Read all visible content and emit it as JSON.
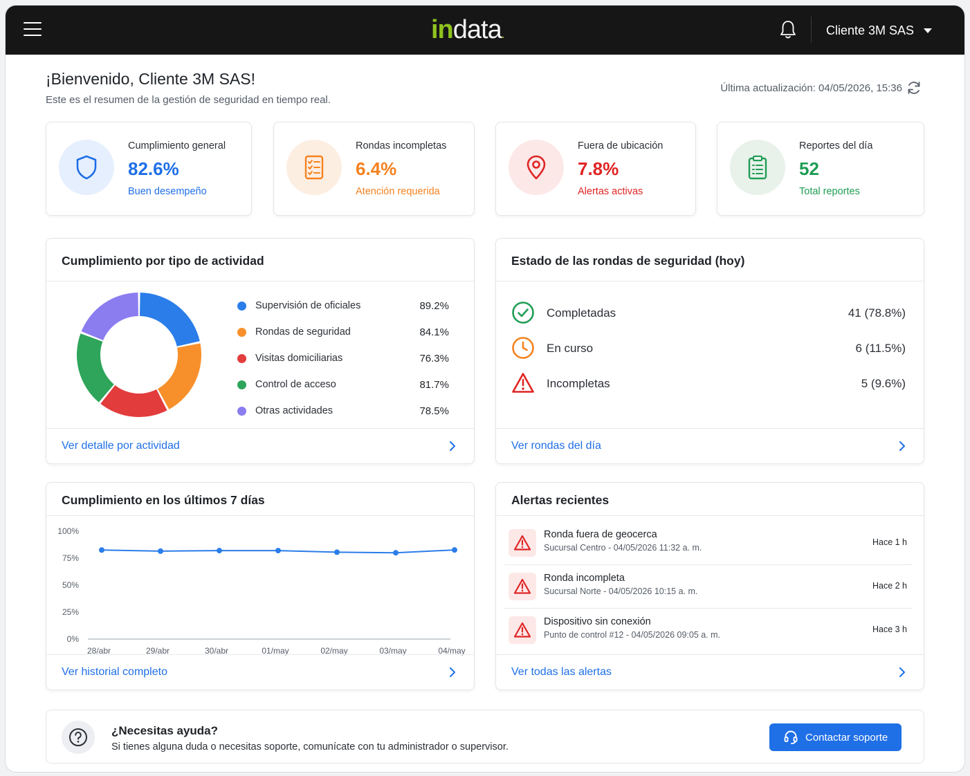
{
  "header": {
    "logo_in": "in",
    "logo_data": "data",
    "logo_dot": ".",
    "client_name": "Cliente 3M SAS"
  },
  "welcome": {
    "title": "¡Bienvenido, Cliente 3M SAS!",
    "subtitle": "Este es el resumen de la gestión de seguridad en tiempo real.",
    "last_update": "Última actualización: 04/05/2026, 15:36"
  },
  "kpis": [
    {
      "label": "Cumplimiento general",
      "value": "82.6%",
      "sub": "Buen desempeño",
      "color": "#1f6fe6",
      "bg": "#e6effd",
      "icon": "shield-icon"
    },
    {
      "label": "Rondas incompletas",
      "value": "6.4%",
      "sub": "Atención requerida",
      "color": "#f5821f",
      "bg": "#fdeee2",
      "icon": "checklist-icon"
    },
    {
      "label": "Fuera de ubicación",
      "value": "7.8%",
      "sub": "Alertas activas",
      "color": "#e02424",
      "bg": "#fde8e8",
      "icon": "location-pin-icon"
    },
    {
      "label": "Reportes del día",
      "value": "52",
      "sub": "Total reportes",
      "color": "#1f9d55",
      "bg": "#e8f1ea",
      "icon": "clipboard-icon"
    }
  ],
  "activity": {
    "title": "Cumplimiento por tipo de actividad",
    "link": "Ver detalle por actividad",
    "items": [
      {
        "name": "Supervisión de oficiales",
        "value": 89.2,
        "label": "89.2%",
        "color": "#2b7de9"
      },
      {
        "name": "Rondas de seguridad",
        "value": 84.1,
        "label": "84.1%",
        "color": "#f7902b"
      },
      {
        "name": "Visitas domiciliarias",
        "value": 76.3,
        "label": "76.3%",
        "color": "#e23c3c"
      },
      {
        "name": "Control de acceso",
        "value": 81.7,
        "label": "81.7%",
        "color": "#2ea55a"
      },
      {
        "name": "Otras actividades",
        "value": 78.5,
        "label": "78.5%",
        "color": "#8b7cf0"
      }
    ]
  },
  "rounds": {
    "title": "Estado de las rondas de seguridad (hoy)",
    "link": "Ver rondas del día",
    "items": [
      {
        "name": "Completadas",
        "count": "41 (78.8%)",
        "icon": "check-circle-icon",
        "color": "#1f9d55"
      },
      {
        "name": "En curso",
        "count": "6 (11.5%)",
        "icon": "clock-icon",
        "color": "#f5821f"
      },
      {
        "name": "Incompletas",
        "count": "5 (9.6%)",
        "icon": "warning-triangle-icon",
        "color": "#e02424"
      }
    ]
  },
  "chart_data": {
    "type": "line",
    "title": "Cumplimiento en los últimos 7 días",
    "categories": [
      "28/abr",
      "29/abr",
      "30/abr",
      "01/may",
      "02/may",
      "03/may",
      "04/may"
    ],
    "values": [
      82.5,
      81.5,
      82,
      82,
      80.5,
      80,
      82.6
    ],
    "y_ticks": [
      "100%",
      "75%",
      "50%",
      "25%",
      "0%"
    ],
    "ylim": [
      0,
      100
    ],
    "grid": false,
    "color": "#2b7de9"
  },
  "history": {
    "link": "Ver historial completo"
  },
  "alerts": {
    "title": "Alertas recientes",
    "link": "Ver todas las alertas",
    "items": [
      {
        "title": "Ronda fuera de geocerca",
        "desc": "Sucursal Centro - 04/05/2026 11:32 a. m.",
        "time": "Hace 1 h"
      },
      {
        "title": "Ronda incompleta",
        "desc": "Sucursal Norte - 04/05/2026 10:15 a. m.",
        "time": "Hace 2 h"
      },
      {
        "title": "Dispositivo sin conexión",
        "desc": "Punto de control #12 - 04/05/2026 09:05 a. m.",
        "time": "Hace 3 h"
      }
    ]
  },
  "help": {
    "title": "¿Necesitas ayuda?",
    "desc": "Si tienes alguna duda o necesitas soporte, comunícate con tu administrador o supervisor.",
    "button": "Contactar soporte"
  }
}
